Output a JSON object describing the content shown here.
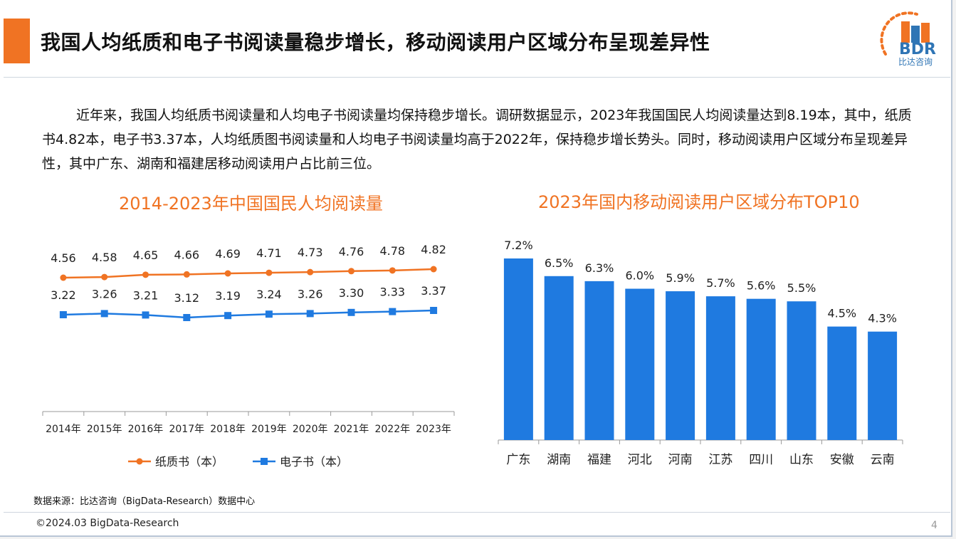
{
  "header": {
    "title": "我国人均纸质和电子书阅读量稳步增长，移动阅读用户区域分布呈现差异性",
    "logo_text": "BDR",
    "logo_subtitle": "比达咨询"
  },
  "intro": {
    "paragraph": "近年来，我国人均纸质书阅读量和人均电子书阅读量均保持稳步增长。调研数据显示，2023年我国国民人均阅读量达到8.19本，其中，纸质书4.82本，电子书3.37本，人均纸质图书阅读量和人均电子书阅读量均高于2022年，保持稳步增长势头。同时，移动阅读用户区域分布呈现差异性，其中广东、湖南和福建居移动阅读用户占比前三位。"
  },
  "chart_data": [
    {
      "type": "line",
      "title": "2014-2023年中国国民人均阅读量",
      "categories": [
        "2014年",
        "2015年",
        "2016年",
        "2017年",
        "2018年",
        "2019年",
        "2020年",
        "2021年",
        "2022年",
        "2023年"
      ],
      "series": [
        {
          "name": "纸质书（本）",
          "color": "#f07323",
          "marker": "circle",
          "values": [
            4.56,
            4.58,
            4.65,
            4.66,
            4.69,
            4.71,
            4.73,
            4.76,
            4.78,
            4.82
          ]
        },
        {
          "name": "电子书（本）",
          "color": "#1f7ae0",
          "marker": "square",
          "values": [
            3.22,
            3.26,
            3.21,
            3.12,
            3.19,
            3.24,
            3.26,
            3.3,
            3.33,
            3.37
          ]
        }
      ],
      "value_labels": [
        [
          "4.56",
          "4.58",
          "4.65",
          "4.66",
          "4.69",
          "4.71",
          "4.73",
          "4.76",
          "4.78",
          "4.82"
        ],
        [
          "3.22",
          "3.26",
          "3.21",
          "3.12",
          "3.19",
          "3.24",
          "3.26",
          "3.30",
          "3.33",
          "3.37"
        ]
      ],
      "legend_position": "bottom",
      "grid": false
    },
    {
      "type": "bar",
      "title": "2023年国内移动阅读用户区域分布TOP10",
      "categories": [
        "广东",
        "湖南",
        "福建",
        "河北",
        "河南",
        "江苏",
        "四川",
        "山东",
        "安徽",
        "云南"
      ],
      "values": [
        7.2,
        6.5,
        6.3,
        6.0,
        5.9,
        5.7,
        5.6,
        5.5,
        4.5,
        4.3
      ],
      "value_labels": [
        "7.2%",
        "6.5%",
        "6.3%",
        "6.0%",
        "5.9%",
        "5.7%",
        "5.6%",
        "5.5%",
        "4.5%",
        "4.3%"
      ],
      "unit": "%",
      "color": "#1f7ae0",
      "ylim": [
        0,
        7.2
      ],
      "grid": false
    }
  ],
  "footer": {
    "source": "数据来源：比达咨询（BigData-Research）数据中心",
    "copyright": "©2024.03 BigData-Research",
    "page_number": "4"
  }
}
